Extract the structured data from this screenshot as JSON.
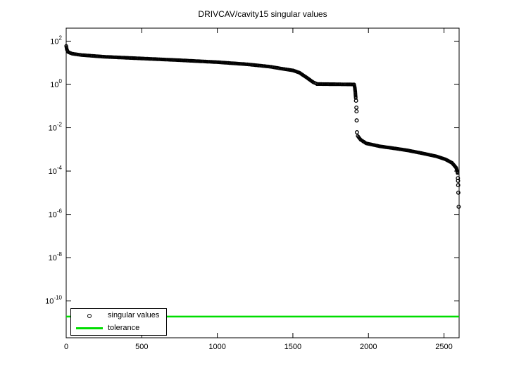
{
  "chart_data": {
    "type": "scatter",
    "title": "DRIVCAV/cavity15 singular values",
    "x_axis": {
      "ticks": [
        0,
        500,
        1000,
        1500,
        2000,
        2500
      ],
      "lim": [
        0,
        2600
      ],
      "scale": "linear"
    },
    "y_axis": {
      "scale": "log10",
      "tick_exponents": [
        2,
        0,
        -2,
        -4,
        -6,
        -8,
        -10
      ],
      "lim_exponents": [
        -11.7,
        2.6
      ],
      "tick_label_base": "10"
    },
    "grid": false,
    "legend_position": "southwest",
    "series": {
      "name": "singular values",
      "marker": "o",
      "color": "#000000",
      "n_points": 2597,
      "dense_segments": [
        [
          [
            0,
            1.78
          ],
          [
            4,
            1.62
          ],
          [
            12,
            1.5
          ],
          [
            40,
            1.42
          ],
          [
            100,
            1.36
          ],
          [
            250,
            1.28
          ],
          [
            500,
            1.2
          ],
          [
            750,
            1.12
          ],
          [
            1000,
            1.03
          ],
          [
            1200,
            0.93
          ],
          [
            1350,
            0.82
          ],
          [
            1426,
            0.73
          ],
          [
            1500,
            0.65
          ]
        ],
        [
          [
            1500,
            0.65
          ],
          [
            1542,
            0.55
          ],
          [
            1589,
            0.33
          ],
          [
            1635,
            0.1
          ],
          [
            1659,
            0.03
          ]
        ],
        [
          [
            1659,
            0.02
          ],
          [
            1800,
            0.01
          ],
          [
            1905,
            0.0
          ]
        ],
        [
          [
            1905,
            0.0
          ],
          [
            1910,
            -0.15
          ],
          [
            1913,
            -0.35
          ],
          [
            1916,
            -0.62
          ]
        ],
        [
          [
            1929,
            -2.38
          ],
          [
            1948,
            -2.55
          ],
          [
            1985,
            -2.72
          ],
          [
            2078,
            -2.86
          ],
          [
            2171,
            -2.95
          ],
          [
            2264,
            -3.05
          ],
          [
            2357,
            -3.18
          ],
          [
            2451,
            -3.32
          ],
          [
            2507,
            -3.45
          ],
          [
            2553,
            -3.62
          ],
          [
            2581,
            -3.85
          ],
          [
            2590,
            -4.1
          ]
        ]
      ],
      "isolated_points": [
        [
          1918,
          -0.75
        ],
        [
          1920,
          -1.07
        ],
        [
          1921,
          -1.24
        ],
        [
          1922,
          -1.66
        ],
        [
          1924,
          -2.21
        ],
        [
          2592,
          -4.33
        ],
        [
          2593,
          -4.45
        ],
        [
          2594,
          -4.65
        ],
        [
          2595,
          -5.0
        ],
        [
          2597,
          -5.65
        ]
      ]
    },
    "tolerance": {
      "name": "tolerance",
      "color": "#00dd00",
      "log10_value": -10.72
    }
  }
}
